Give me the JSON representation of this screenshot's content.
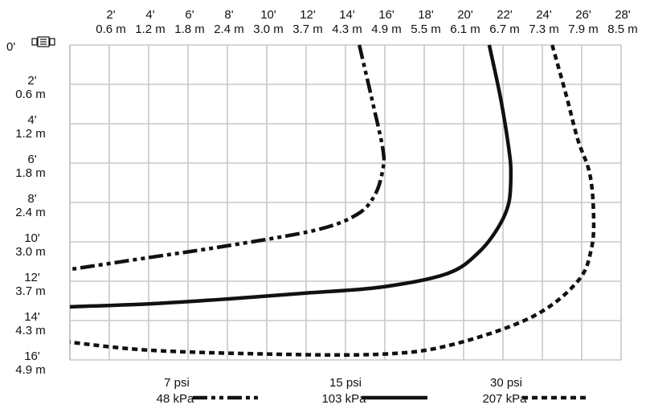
{
  "chart_data": {
    "type": "line",
    "title": "",
    "xlabel": "",
    "ylabel": "",
    "xlim": [
      0,
      28
    ],
    "ylim": [
      0,
      16
    ],
    "x_unit_primary": "ft",
    "x_unit_secondary": "m",
    "x_ticks": [
      {
        "ft": "2'",
        "m": "0.6 m"
      },
      {
        "ft": "4'",
        "m": "1.2 m"
      },
      {
        "ft": "6'",
        "m": "1.8 m"
      },
      {
        "ft": "8'",
        "m": "2.4 m"
      },
      {
        "ft": "10'",
        "m": "3.0 m"
      },
      {
        "ft": "12'",
        "m": "3.7 m"
      },
      {
        "ft": "14'",
        "m": "4.3 m"
      },
      {
        "ft": "16'",
        "m": "4.9 m"
      },
      {
        "ft": "18'",
        "m": "5.5 m"
      },
      {
        "ft": "20'",
        "m": "6.1 m"
      },
      {
        "ft": "22'",
        "m": "6.7 m"
      },
      {
        "ft": "24'",
        "m": "7.3 m"
      },
      {
        "ft": "26'",
        "m": "7.9 m"
      },
      {
        "ft": "28'",
        "m": "8.5 m"
      }
    ],
    "y_origin_label": "0'",
    "y_ticks": [
      {
        "ft": "2'",
        "m": "0.6 m"
      },
      {
        "ft": "4'",
        "m": "1.2 m"
      },
      {
        "ft": "6'",
        "m": "1.8 m"
      },
      {
        "ft": "8'",
        "m": "2.4 m"
      },
      {
        "ft": "10'",
        "m": "3.0 m"
      },
      {
        "ft": "12'",
        "m": "3.7 m"
      },
      {
        "ft": "14'",
        "m": "4.3 m"
      },
      {
        "ft": "16'",
        "m": "4.9 m"
      }
    ],
    "grid": true,
    "legend_position": "bottom",
    "series": [
      {
        "name": "7 psi",
        "name_metric": "48 kPa",
        "style": "dash-dot-dot",
        "color": "#111111",
        "points": [
          [
            14.7,
            0
          ],
          [
            15.4,
            3
          ],
          [
            15.9,
            5.3
          ],
          [
            15.9,
            6.3
          ],
          [
            15.5,
            7.6
          ],
          [
            14.6,
            8.6
          ],
          [
            12.5,
            9.4
          ],
          [
            8,
            10.2
          ],
          [
            4,
            10.8
          ],
          [
            0,
            11.4
          ]
        ]
      },
      {
        "name": "15 psi",
        "name_metric": "103 kPa",
        "style": "solid",
        "color": "#111111",
        "points": [
          [
            21.3,
            0
          ],
          [
            21.9,
            2.8
          ],
          [
            22.3,
            5.3
          ],
          [
            22.4,
            6.5
          ],
          [
            22.3,
            8
          ],
          [
            21.8,
            9.2
          ],
          [
            20.8,
            10.5
          ],
          [
            19.2,
            11.6
          ],
          [
            15.8,
            12.3
          ],
          [
            12,
            12.6
          ],
          [
            8,
            12.9
          ],
          [
            4,
            13.15
          ],
          [
            0,
            13.3
          ]
        ]
      },
      {
        "name": "30 psi",
        "name_metric": "207 kPa",
        "style": "dotted",
        "color": "#111111",
        "points": [
          [
            24.5,
            0
          ],
          [
            25.2,
            2.5
          ],
          [
            25.8,
            4.8
          ],
          [
            26.4,
            6.5
          ],
          [
            26.6,
            8.5
          ],
          [
            26.5,
            10.3
          ],
          [
            25.8,
            12
          ],
          [
            23.5,
            13.8
          ],
          [
            19.5,
            15.2
          ],
          [
            16,
            15.7
          ],
          [
            10,
            15.7
          ],
          [
            4,
            15.5
          ],
          [
            0,
            15.1
          ]
        ]
      }
    ]
  }
}
